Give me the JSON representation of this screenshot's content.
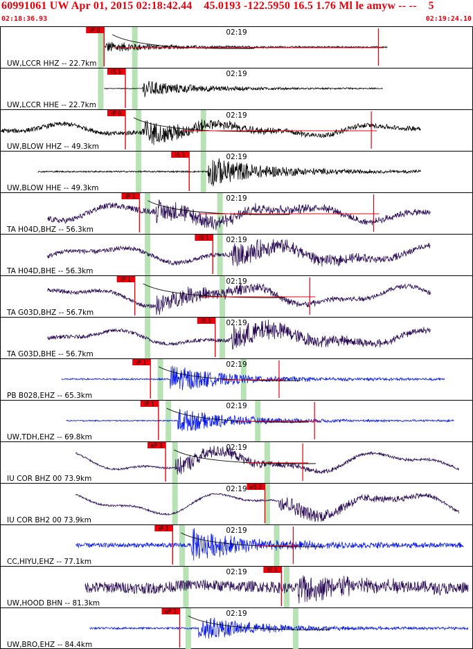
{
  "header": {
    "title": "60991061 UW Apr 01, 2015 02:18:42.44    45.0193 -122.5950 16.5 1.76 Ml le amyw -- --    5",
    "start_time": "02:18:36.93",
    "end_time": "02:19:24.10"
  },
  "colors": {
    "header": "#e8000b",
    "pick": "#e8000b",
    "window": "#b7e3b4",
    "black": "#000000",
    "purple": "#2a0b55",
    "blue": "#0a1be8"
  },
  "chart_data": {
    "type": "seismogram",
    "time_range": [
      "02:18:36.93",
      "02:19:24.10"
    ],
    "minute_mark": "02:19",
    "traces": [
      {
        "label": "UW,LCCR HHZ -- 22.7km",
        "color": "black",
        "shape": "impulsive",
        "start_frac": 0.22,
        "end_frac": 0.82,
        "onset_frac": 0.224,
        "p_win": 0.213,
        "s_win": 0.285,
        "amp": 0.2,
        "noise": 0.03,
        "lowfreq": 0,
        "pick": {
          "label": "iP 0",
          "frac": 0.22
        },
        "model_curve": true,
        "redline": true,
        "red_mark": 0.8
      },
      {
        "label": "UW,LCCR HHE -- 22.7km",
        "color": "black",
        "shape": "impulsive",
        "start_frac": 0.22,
        "end_frac": 0.81,
        "onset_frac": 0.3,
        "p_win": 0.213,
        "s_win": 0.285,
        "amp": 0.3,
        "noise": 0.02,
        "lowfreq": 0,
        "pick": {
          "label": "iS 1",
          "frac": 0.265
        },
        "model_curve": false,
        "redline": false
      },
      {
        "label": "UW,BLOW HHZ -- 49.3km",
        "color": "black",
        "shape": "impulsive",
        "start_frac": 0.0,
        "end_frac": 0.89,
        "onset_frac": 0.3,
        "p_win": 0.293,
        "s_win": 0.43,
        "amp": 0.45,
        "noise": 0.12,
        "lowfreq": 0.3,
        "pick": {
          "label": "iP 0",
          "frac": 0.265
        },
        "model_curve": true,
        "redline": true,
        "red_mark": 0.785
      },
      {
        "label": "UW,BLOW HHE -- 49.3km",
        "color": "black",
        "shape": "impulsive",
        "start_frac": 0.08,
        "end_frac": 0.89,
        "onset_frac": 0.44,
        "p_win": 0.293,
        "s_win": 0.43,
        "amp": 0.55,
        "noise": 0.04,
        "lowfreq": 0,
        "pick": {
          "label": "iS 1",
          "frac": 0.4
        },
        "model_curve": false,
        "redline": false
      },
      {
        "label": "TA H04D,BHZ -- 56.3km",
        "color": "purple",
        "shape": "lowfreq",
        "start_frac": 0.1,
        "end_frac": 0.91,
        "onset_frac": 0.33,
        "p_win": 0.312,
        "s_win": 0.465,
        "amp": 0.35,
        "noise": 0.15,
        "lowfreq": 0.45,
        "pick": {
          "label": "iP 1",
          "frac": 0.295
        },
        "model_curve": true,
        "redline": true,
        "red_mark": 0.79
      },
      {
        "label": "TA H04D,BHE -- 56.3km",
        "color": "purple",
        "shape": "lowfreq",
        "start_frac": 0.1,
        "end_frac": 0.91,
        "onset_frac": 0.49,
        "p_win": 0.312,
        "s_win": 0.465,
        "amp": 0.4,
        "noise": 0.12,
        "lowfreq": 0.45,
        "pick": {
          "label": "iS 1",
          "frac": 0.45
        },
        "model_curve": false,
        "redline": false
      },
      {
        "label": "TA G03D,BHZ -- 56.7km",
        "color": "purple",
        "shape": "lowfreq",
        "start_frac": 0.1,
        "end_frac": 0.91,
        "onset_frac": 0.33,
        "p_win": 0.312,
        "s_win": 0.47,
        "amp": 0.35,
        "noise": 0.1,
        "lowfreq": 0.5,
        "pick": {
          "label": "iP 1",
          "frac": 0.285
        },
        "model_curve": true,
        "redline": true,
        "red_mark": 0.655
      },
      {
        "label": "TA G03D,BHE -- 56.7km",
        "color": "purple",
        "shape": "lowfreq",
        "start_frac": 0.1,
        "end_frac": 0.91,
        "onset_frac": 0.49,
        "p_win": 0.312,
        "s_win": 0.47,
        "amp": 0.45,
        "noise": 0.1,
        "lowfreq": 0.4,
        "pick": {
          "label": "iS 1",
          "frac": 0.455
        },
        "model_curve": false,
        "redline": false
      },
      {
        "label": "PB B028,EHZ -- 65.3km",
        "color": "blue",
        "shape": "impulsive",
        "start_frac": 0.13,
        "end_frac": 0.94,
        "onset_frac": 0.36,
        "p_win": 0.339,
        "s_win": 0.515,
        "amp": 0.5,
        "noise": 0.04,
        "lowfreq": 0,
        "pick": {
          "label": "iP 1",
          "frac": 0.318
        },
        "model_curve": true,
        "redline": true,
        "red_mark": 0.59
      },
      {
        "label": "UW,TDH,EHZ -- 69.8km",
        "color": "blue",
        "shape": "impulsive",
        "start_frac": 0.14,
        "end_frac": 0.96,
        "onset_frac": 0.375,
        "p_win": 0.356,
        "s_win": 0.545,
        "amp": 0.45,
        "noise": 0.03,
        "lowfreq": 0,
        "pick": {
          "label": "iP 1",
          "frac": 0.335
        },
        "model_curve": true,
        "redline": true,
        "red_mark": 0.665
      },
      {
        "label": "IU COR BHZ 00 73.9km",
        "color": "purple",
        "shape": "lowfreq",
        "start_frac": 0.16,
        "end_frac": 0.97,
        "onset_frac": 0.37,
        "p_win": 0.37,
        "s_win": 0.565,
        "amp": 0.3,
        "noise": 0.05,
        "lowfreq": 0.55,
        "pick": {
          "label": "eP 3",
          "frac": 0.35
        },
        "model_curve": true,
        "redline": true,
        "red_mark": 0.64
      },
      {
        "label": "IU COR BH2 00 73.9km",
        "color": "purple",
        "shape": "lowfreq",
        "start_frac": 0.16,
        "end_frac": 0.97,
        "onset_frac": 0.59,
        "p_win": 0.37,
        "s_win": 0.565,
        "amp": 0.3,
        "noise": 0.05,
        "lowfreq": 0.6,
        "pick": {
          "label": "eS 2",
          "frac": 0.56
        },
        "model_curve": false,
        "redline": false
      },
      {
        "label": "CC,HIYU,EHZ -- 77.1km",
        "color": "blue",
        "shape": "impulsive",
        "start_frac": 0.16,
        "end_frac": 0.98,
        "onset_frac": 0.405,
        "p_win": 0.385,
        "s_win": 0.585,
        "amp": 0.55,
        "noise": 0.12,
        "lowfreq": 0,
        "pick": {
          "label": "iP 1",
          "frac": 0.365
        },
        "model_curve": true,
        "redline": true,
        "red_mark": 0.62
      },
      {
        "label": "UW,HOOD BHN -- 81.3km",
        "color": "purple",
        "shape": "impulsive",
        "start_frac": 0.18,
        "end_frac": 0.99,
        "onset_frac": 0.63,
        "p_win": 0.393,
        "s_win": 0.606,
        "amp": 0.5,
        "noise": 0.3,
        "lowfreq": 0.1,
        "pick": {
          "label": "iS 1",
          "frac": 0.595
        },
        "model_curve": false,
        "redline": false
      },
      {
        "label": "UW,BRO,EHZ -- 84.4km",
        "color": "blue",
        "shape": "impulsive",
        "start_frac": 0.19,
        "end_frac": 0.99,
        "onset_frac": 0.42,
        "p_win": 0.398,
        "s_win": 0.625,
        "amp": 0.45,
        "noise": 0.05,
        "lowfreq": 0,
        "pick": {
          "label": "eP 2",
          "frac": 0.38
        },
        "model_curve": true,
        "redline": false
      }
    ]
  }
}
